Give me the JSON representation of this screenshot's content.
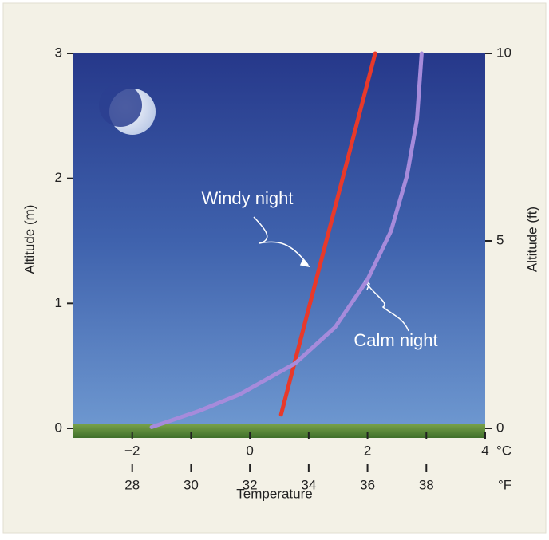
{
  "chart_data": {
    "type": "line",
    "xlabel": "Temperature",
    "ylabel": "Altitude (m)",
    "y2label": "Altitude (ft)",
    "xunit": "°C",
    "x2unit": "°F",
    "xlim": [
      -3,
      4
    ],
    "xticks": [
      {
        "value": -2,
        "label": "−2"
      },
      0,
      2,
      4
    ],
    "xminorticks": [
      -1,
      1,
      3
    ],
    "x2lim": [
      26,
      40
    ],
    "x2ticks": [
      28,
      30,
      32,
      34,
      36,
      38
    ],
    "ylim": [
      0,
      3
    ],
    "yticks": [
      0,
      1,
      2,
      3
    ],
    "y2lim": [
      0,
      10
    ],
    "y2ticks": [
      0,
      5,
      10
    ],
    "series": [
      {
        "name": "Windy night",
        "color": "#e8392a",
        "x": [
          0.53,
          2.13
        ],
        "values": [
          0.11,
          3.0
        ]
      },
      {
        "name": "Calm night",
        "color": "#a68bdb",
        "x": [
          -1.67,
          -0.86,
          -0.18,
          0.77,
          1.45,
          2.0,
          2.4,
          2.67,
          2.84,
          2.92
        ],
        "values": [
          0.01,
          0.14,
          0.27,
          0.52,
          0.81,
          1.19,
          1.58,
          2.02,
          2.47,
          3.0
        ]
      }
    ]
  }
}
